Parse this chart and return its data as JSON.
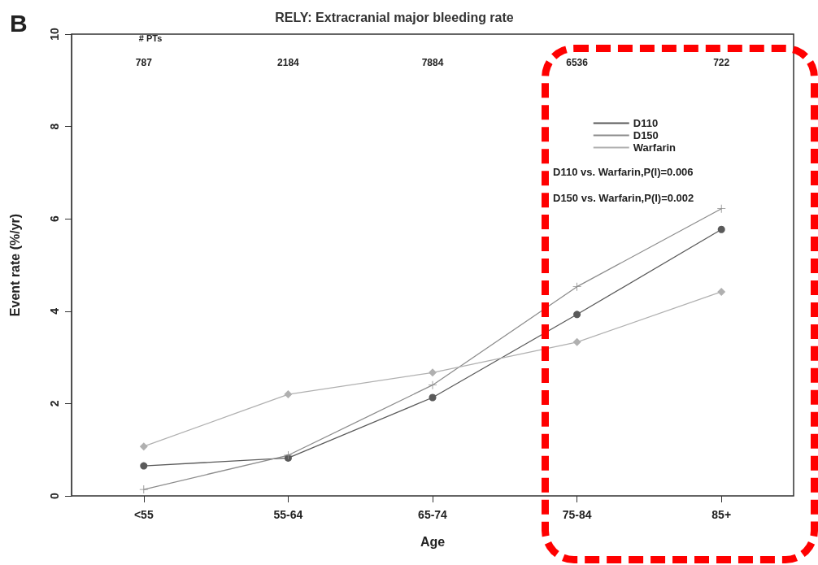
{
  "chart_data": {
    "type": "line",
    "title": "RELY: Extracranial major bleeding rate",
    "xlabel": "Age",
    "ylabel": "Event rate (%/yr)",
    "categories": [
      "<55",
      "55-64",
      "65-74",
      "75-84",
      "85+"
    ],
    "series": [
      {
        "name": "D110",
        "color": "#5a5a5a",
        "marker": "circle",
        "values": [
          0.65,
          0.82,
          2.13,
          3.93,
          5.77
        ]
      },
      {
        "name": "D150",
        "color": "#8c8c8c",
        "marker": "cross",
        "values": [
          0.14,
          0.88,
          2.4,
          4.53,
          6.22
        ]
      },
      {
        "name": "Warfarin",
        "color": "#b0b0b0",
        "marker": "diamond",
        "values": [
          1.07,
          2.2,
          2.67,
          3.33,
          4.42
        ]
      }
    ],
    "ylim": [
      0,
      10
    ],
    "yticks": [
      0,
      2,
      4,
      6,
      8,
      10
    ],
    "grid": false,
    "legend": "top right",
    "line_style": "solid",
    "annotations": [
      "B",
      "# PTs",
      "787",
      "2184",
      "7884",
      "6536",
      "722",
      "D110 vs. Warfarin,P(I)=0.006",
      "D150 vs. Warfarin,P(I)=0.002"
    ]
  }
}
